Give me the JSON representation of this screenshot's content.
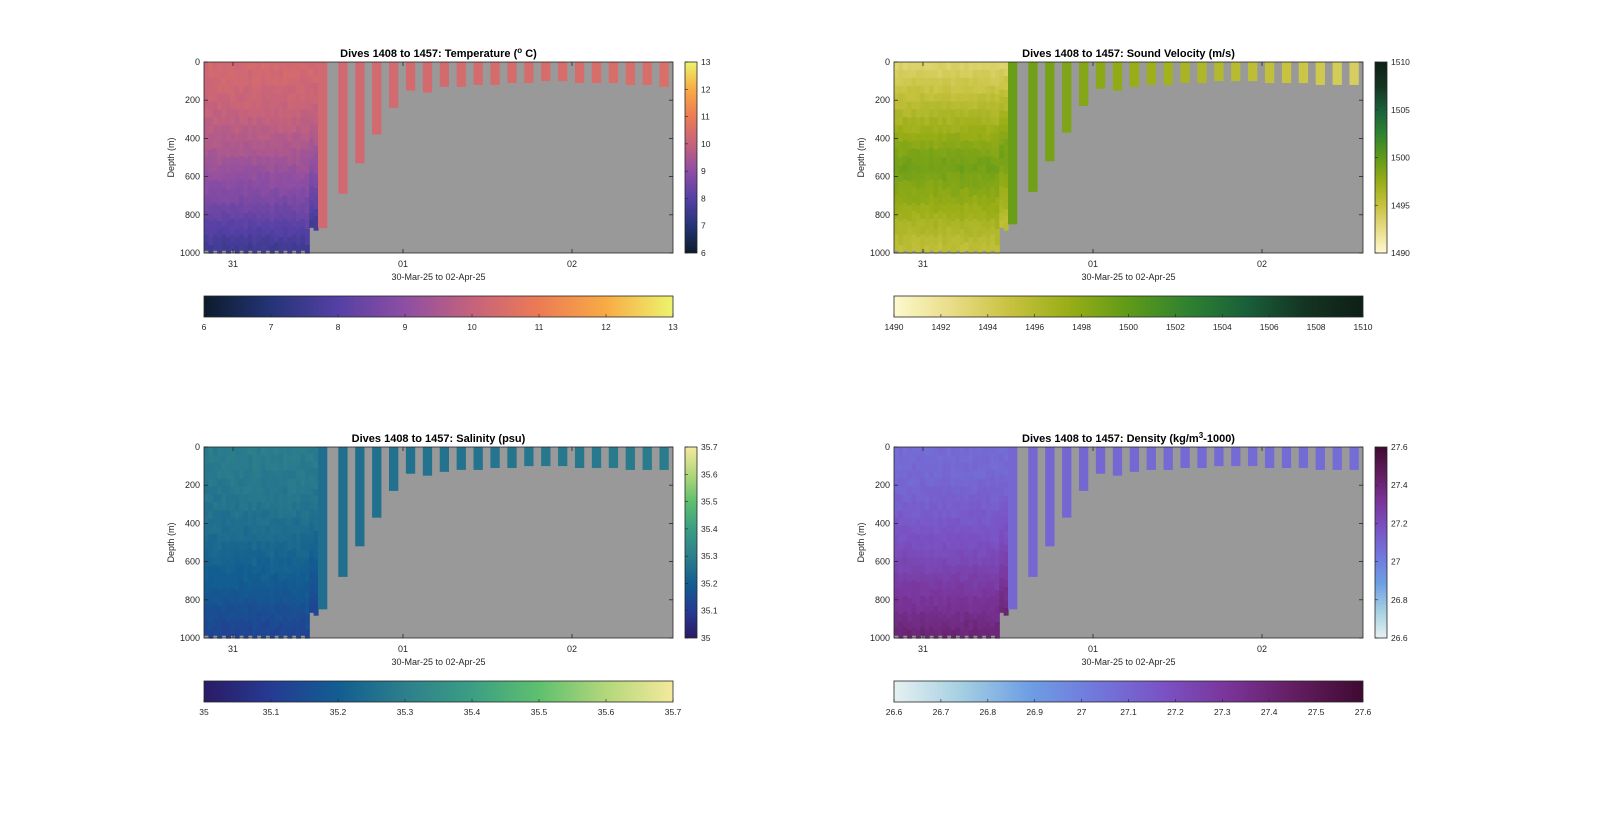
{
  "figure": {
    "background": "#ffffff",
    "nodata_color": "#999999"
  },
  "chart_data": [
    {
      "type": "heatmap",
      "id": "temperature",
      "title": "Dives 1408 to 1457: Temperature (",
      "title_sup": "o",
      "title_after": " C)",
      "xlabel": "30-Mar-25 to 02-Apr-25",
      "ylabel": "Depth (m)",
      "xticks": [
        "31",
        "01",
        "02"
      ],
      "yticks": [
        "0",
        "200",
        "400",
        "600",
        "800",
        "1000"
      ],
      "ylim": [
        0,
        1000
      ],
      "colorbar_right_ticks": [
        "6",
        "7",
        "8",
        "9",
        "10",
        "11",
        "12",
        "13"
      ],
      "colorbar_bottom_ticks": [
        "6",
        "7",
        "8",
        "9",
        "10",
        "11",
        "12",
        "13"
      ],
      "clim": [
        6,
        13
      ],
      "colormap": [
        "#0c1c2b",
        "#243477",
        "#5540a5",
        "#8e4ea3",
        "#c5627c",
        "#ec7b55",
        "#f8ab45",
        "#ecf46d"
      ],
      "deep_dive_cells": 26,
      "surface_value": 10.3,
      "bottom_value": 7.6,
      "shallow_value": 10.3,
      "shallow_value_end": 10.5,
      "shallow_dive_max_depths": [
        870,
        690,
        530,
        380,
        240,
        150,
        160,
        130,
        130,
        120,
        120,
        110,
        110,
        100,
        100,
        110,
        110,
        110,
        120,
        120,
        130
      ]
    },
    {
      "type": "heatmap",
      "id": "sound_velocity",
      "title": "Dives 1408 to 1457: Sound Velocity (m/s)",
      "title_sup": "",
      "title_after": "",
      "xlabel": "30-Mar-25 to 02-Apr-25",
      "ylabel": "Depth (m)",
      "xticks": [
        "31",
        "01",
        "02"
      ],
      "yticks": [
        "0",
        "200",
        "400",
        "600",
        "800",
        "1000"
      ],
      "ylim": [
        0,
        1000
      ],
      "colorbar_right_ticks": [
        "1490",
        "1495",
        "1500",
        "1505",
        "1510"
      ],
      "colorbar_bottom_ticks": [
        "1490",
        "1492",
        "1494",
        "1496",
        "1498",
        "1500",
        "1502",
        "1504",
        "1506",
        "1508",
        "1510"
      ],
      "clim": [
        1490,
        1510
      ],
      "colormap": [
        "#fdf9cd",
        "#e8dc86",
        "#c6c23e",
        "#98ad16",
        "#5f9a19",
        "#2f8230",
        "#19603a",
        "#143422",
        "#0e1f17"
      ],
      "deep_dive_cells": 26,
      "surface_value": 1493.5,
      "bottom_value": 1495.5,
      "mid_value": 1499.3,
      "shallow_value": 1499.5,
      "shallow_value_end": 1493.8,
      "shallow_dive_max_depths": [
        850,
        680,
        520,
        370,
        230,
        140,
        150,
        130,
        120,
        120,
        110,
        110,
        100,
        100,
        100,
        110,
        110,
        110,
        120,
        120,
        120
      ]
    },
    {
      "type": "heatmap",
      "id": "salinity",
      "title": "Dives 1408 to 1457: Salinity (psu)",
      "title_sup": "",
      "title_after": "",
      "xlabel": "30-Mar-25 to 02-Apr-25",
      "ylabel": "Depth (m)",
      "xticks": [
        "31",
        "01",
        "02"
      ],
      "yticks": [
        "0",
        "200",
        "400",
        "600",
        "800",
        "1000"
      ],
      "ylim": [
        0,
        1000
      ],
      "colorbar_right_ticks": [
        "35",
        "35.1",
        "35.2",
        "35.3",
        "35.4",
        "35.5",
        "35.6",
        "35.7"
      ],
      "colorbar_bottom_ticks": [
        "35",
        "35.1",
        "35.2",
        "35.3",
        "35.4",
        "35.5",
        "35.6",
        "35.7"
      ],
      "clim": [
        35,
        35.7
      ],
      "colormap": [
        "#2b1a65",
        "#253b93",
        "#125d91",
        "#2d7f8c",
        "#3b9e84",
        "#5ec06e",
        "#b3d77b",
        "#f4e99d"
      ],
      "deep_dive_cells": 26,
      "surface_value": 35.29,
      "bottom_value": 35.13,
      "shallow_value": 35.25,
      "shallow_value_end": 35.29,
      "shallow_dive_max_depths": [
        850,
        680,
        520,
        370,
        230,
        140,
        150,
        130,
        120,
        120,
        110,
        110,
        100,
        100,
        100,
        110,
        110,
        110,
        120,
        120,
        120
      ]
    },
    {
      "type": "heatmap",
      "id": "density",
      "title": "Dives 1408 to 1457: Density (kg/m",
      "title_sup": "3",
      "title_after": "-1000)",
      "xlabel": "30-Mar-25 to 02-Apr-25",
      "ylabel": "Depth (m)",
      "xticks": [
        "31",
        "01",
        "02"
      ],
      "yticks": [
        "0",
        "200",
        "400",
        "600",
        "800",
        "1000"
      ],
      "ylim": [
        0,
        1000
      ],
      "colorbar_right_ticks": [
        "26.6",
        "26.8",
        "27",
        "27.2",
        "27.4",
        "27.6"
      ],
      "colorbar_bottom_ticks": [
        "26.6",
        "26.7",
        "26.8",
        "26.9",
        "27",
        "27.1",
        "27.2",
        "27.3",
        "27.4",
        "27.5",
        "27.6"
      ],
      "clim": [
        26.6,
        27.6
      ],
      "colormap": [
        "#e6f1f1",
        "#a5cfe2",
        "#6e9fe4",
        "#7178dc",
        "#7a53c5",
        "#7a3499",
        "#621d60",
        "#3f0a31"
      ],
      "deep_dive_cells": 26,
      "surface_value": 27.08,
      "bottom_value": 27.4,
      "shallow_value": 27.1,
      "shallow_value_end": 27.07,
      "shallow_dive_max_depths": [
        850,
        680,
        520,
        370,
        230,
        140,
        150,
        130,
        120,
        120,
        110,
        110,
        100,
        100,
        100,
        110,
        110,
        110,
        120,
        120,
        120
      ]
    }
  ]
}
